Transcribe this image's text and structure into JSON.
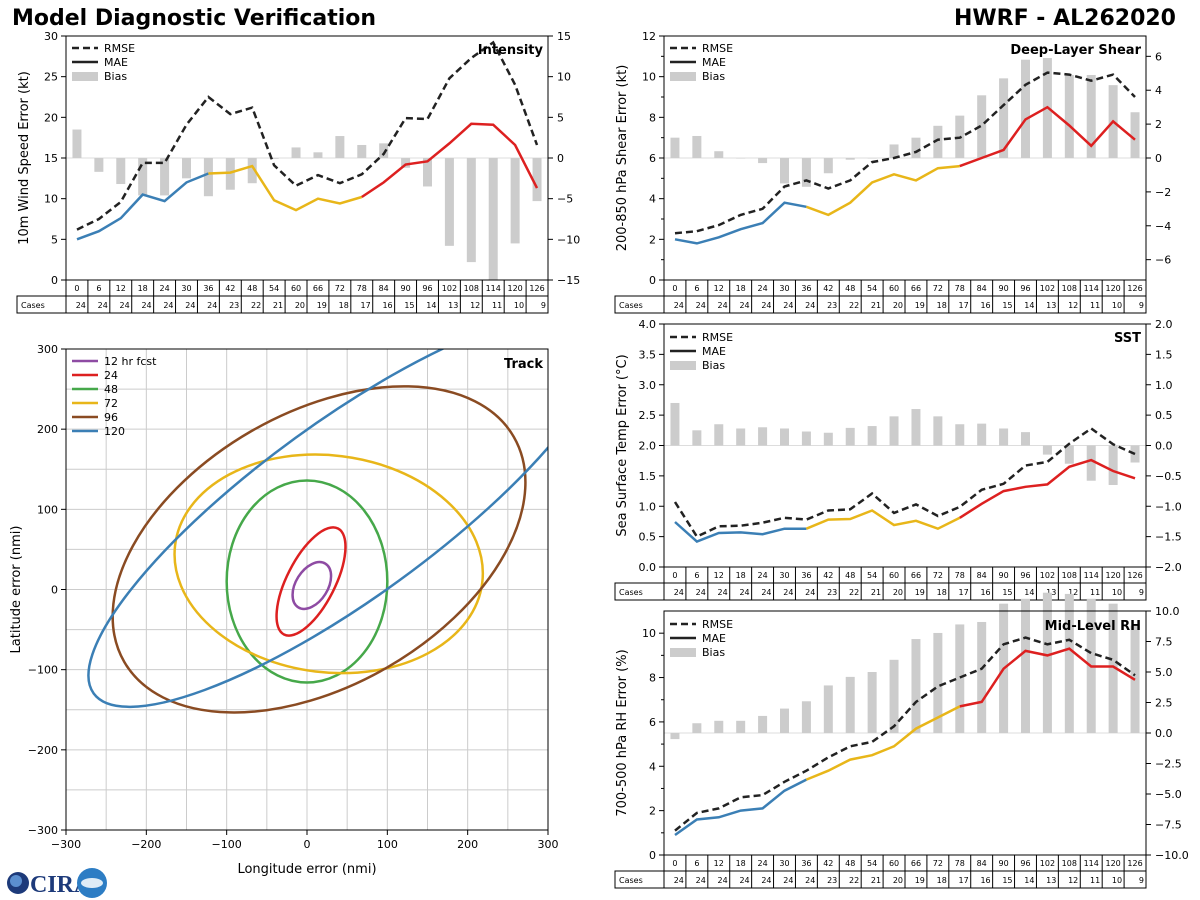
{
  "header": {
    "title": "Model Diagnostic Verification",
    "storm": "HWRF - AL262020"
  },
  "logo": {
    "text": "CIRA",
    "name": "cira-logo"
  },
  "colors": {
    "rmse": "#222222",
    "bias": "#cccccc",
    "seg1": "#3b7fb5",
    "seg2": "#e8b619",
    "seg3": "#dd2020",
    "e12": "#8e4ba3",
    "e24": "#dd2020",
    "e48": "#46a84a",
    "e72": "#e8b619",
    "e96": "#8a4b22",
    "e120": "#3b7fb5"
  },
  "legend": {
    "rmse": "RMSE",
    "mae": "MAE",
    "bias": "Bias"
  },
  "cases_label": "Cases",
  "chart_data": [
    {
      "id": "intensity",
      "type": "line",
      "title": "Intensity",
      "ylabel": "10m Wind Speed Error (kt)",
      "ylim": [
        0,
        30
      ],
      "yticks": [
        0,
        5,
        10,
        15,
        20,
        25,
        30
      ],
      "y2lim": [
        -15,
        15
      ],
      "y2ticks": [
        -15,
        -10,
        -5,
        0,
        5,
        10,
        15
      ],
      "x": [
        0,
        6,
        12,
        18,
        24,
        30,
        36,
        42,
        48,
        54,
        60,
        66,
        72,
        78,
        84,
        90,
        96,
        102,
        108,
        114,
        120,
        126
      ],
      "x_labels": [
        "0",
        "6",
        "12",
        "18",
        "24",
        "30",
        "36",
        "42",
        "48",
        "54",
        "60",
        "66",
        "72",
        "78",
        "84",
        "90",
        "96",
        "102",
        "108",
        "114",
        "120",
        "126"
      ],
      "cases": [
        24,
        24,
        24,
        24,
        24,
        24,
        24,
        23,
        22,
        21,
        20,
        19,
        18,
        17,
        16,
        15,
        14,
        13,
        12,
        11,
        10,
        9
      ],
      "rmse": [
        6.2,
        7.5,
        9.6,
        14.4,
        14.4,
        19.1,
        22.5,
        20.4,
        21.2,
        14.1,
        11.6,
        12.9,
        11.9,
        13.0,
        15.5,
        19.9,
        19.8,
        24.8,
        27.3,
        29.2,
        24.0,
        16.6
      ],
      "mae": [
        5.0,
        6.0,
        7.6,
        10.5,
        9.7,
        12.0,
        13.1,
        13.2,
        14.0,
        9.8,
        8.6,
        10.0,
        9.4,
        10.2,
        12.0,
        14.2,
        14.6,
        16.8,
        19.2,
        19.1,
        16.6,
        11.3
      ],
      "bias": [
        3.5,
        -1.7,
        -3.2,
        -4.6,
        -4.6,
        -2.5,
        -4.7,
        -3.9,
        -3.1,
        -0.1,
        1.3,
        0.7,
        2.7,
        1.6,
        1.8,
        -1.2,
        -3.5,
        -10.8,
        -12.8,
        -15.0,
        -10.5,
        -5.3
      ]
    },
    {
      "id": "shear",
      "type": "line",
      "title": "Deep-Layer Shear",
      "ylabel": "200-850 hPa Shear Error (kt)",
      "ylim": [
        0,
        12
      ],
      "yticks": [
        0,
        2,
        4,
        6,
        8,
        10,
        12
      ],
      "y2lim": [
        -7.2,
        7.2
      ],
      "y2ticks": [
        -6,
        -4,
        -2,
        0,
        2,
        4,
        6
      ],
      "x": [
        0,
        6,
        12,
        18,
        24,
        30,
        36,
        42,
        48,
        54,
        60,
        66,
        72,
        78,
        84,
        90,
        96,
        102,
        108,
        114,
        120,
        126
      ],
      "x_labels": [
        "0",
        "6",
        "12",
        "18",
        "24",
        "30",
        "36",
        "42",
        "48",
        "54",
        "60",
        "66",
        "72",
        "78",
        "84",
        "90",
        "96",
        "102",
        "108",
        "114",
        "120",
        "126"
      ],
      "cases": [
        24,
        24,
        24,
        24,
        24,
        24,
        24,
        23,
        22,
        21,
        20,
        19,
        18,
        17,
        16,
        15,
        14,
        13,
        12,
        11,
        10,
        9
      ],
      "rmse": [
        2.3,
        2.4,
        2.7,
        3.2,
        3.5,
        4.6,
        4.9,
        4.5,
        4.9,
        5.8,
        6.0,
        6.3,
        6.9,
        7.0,
        7.6,
        8.6,
        9.6,
        10.2,
        10.1,
        9.8,
        10.1,
        9.0
      ],
      "mae": [
        2.0,
        1.8,
        2.1,
        2.5,
        2.8,
        3.8,
        3.6,
        3.2,
        3.8,
        4.8,
        5.2,
        4.9,
        5.5,
        5.6,
        6.0,
        6.4,
        7.9,
        8.5,
        7.6,
        6.6,
        7.8,
        6.9
      ],
      "bias": [
        1.2,
        1.3,
        0.4,
        0.0,
        -0.3,
        -1.5,
        -1.7,
        -0.9,
        -0.1,
        0.0,
        0.8,
        1.2,
        1.9,
        2.5,
        3.7,
        4.7,
        5.8,
        5.9,
        4.9,
        4.9,
        4.3,
        2.7
      ]
    },
    {
      "id": "sst",
      "type": "line",
      "title": "SST",
      "ylabel": "Sea Surface Temp Error (°C)",
      "ylim": [
        0,
        4
      ],
      "yticks": [
        0.0,
        0.5,
        1.0,
        1.5,
        2.0,
        2.5,
        3.0,
        3.5,
        4.0
      ],
      "y2lim": [
        -2,
        2
      ],
      "y2ticks": [
        -2.0,
        -1.5,
        -1.0,
        -0.5,
        0.0,
        0.5,
        1.0,
        1.5,
        2.0
      ],
      "x": [
        0,
        6,
        12,
        18,
        24,
        30,
        36,
        42,
        48,
        54,
        60,
        66,
        72,
        78,
        84,
        90,
        96,
        102,
        108,
        114,
        120,
        126
      ],
      "x_labels": [
        "0",
        "6",
        "12",
        "18",
        "24",
        "30",
        "36",
        "42",
        "48",
        "54",
        "60",
        "66",
        "72",
        "78",
        "84",
        "90",
        "96",
        "102",
        "108",
        "114",
        "120",
        "126"
      ],
      "cases": [
        24,
        24,
        24,
        24,
        24,
        24,
        24,
        23,
        22,
        21,
        20,
        19,
        18,
        17,
        16,
        15,
        14,
        13,
        12,
        11,
        10,
        9
      ],
      "rmse": [
        1.07,
        0.5,
        0.67,
        0.68,
        0.73,
        0.81,
        0.78,
        0.93,
        0.95,
        1.21,
        0.89,
        1.03,
        0.84,
        0.99,
        1.27,
        1.37,
        1.67,
        1.73,
        2.03,
        2.28,
        2.02,
        1.86
      ],
      "mae": [
        0.74,
        0.42,
        0.56,
        0.57,
        0.54,
        0.63,
        0.63,
        0.78,
        0.79,
        0.93,
        0.69,
        0.76,
        0.63,
        0.81,
        1.04,
        1.25,
        1.32,
        1.36,
        1.65,
        1.76,
        1.58,
        1.46
      ],
      "bias": [
        0.7,
        0.25,
        0.35,
        0.28,
        0.3,
        0.28,
        0.23,
        0.21,
        0.29,
        0.32,
        0.48,
        0.6,
        0.48,
        0.35,
        0.36,
        0.28,
        0.22,
        -0.15,
        -0.3,
        -0.58,
        -0.65,
        -0.28
      ]
    },
    {
      "id": "rh",
      "type": "line",
      "title": "Mid-Level RH",
      "ylabel": "700-500 hPa RH Error (%)",
      "ylim": [
        0,
        11
      ],
      "yticks": [
        0,
        2,
        4,
        6,
        8,
        10
      ],
      "y2lim": [
        -10,
        10
      ],
      "y2ticks": [
        -10.0,
        -7.5,
        -5.0,
        -2.5,
        0.0,
        2.5,
        5.0,
        7.5,
        10.0
      ],
      "x": [
        0,
        6,
        12,
        18,
        24,
        30,
        36,
        42,
        48,
        54,
        60,
        66,
        72,
        78,
        84,
        90,
        96,
        102,
        108,
        114,
        120,
        126
      ],
      "x_labels": [
        "0",
        "6",
        "12",
        "18",
        "24",
        "30",
        "36",
        "42",
        "48",
        "54",
        "60",
        "66",
        "72",
        "78",
        "84",
        "90",
        "96",
        "102",
        "108",
        "114",
        "120",
        "126"
      ],
      "cases": [
        24,
        24,
        24,
        24,
        24,
        24,
        24,
        23,
        22,
        21,
        20,
        19,
        18,
        17,
        16,
        15,
        14,
        13,
        12,
        11,
        10,
        9
      ],
      "rmse": [
        1.1,
        1.9,
        2.1,
        2.6,
        2.7,
        3.3,
        3.8,
        4.4,
        4.9,
        5.1,
        5.8,
        6.9,
        7.6,
        8.0,
        8.4,
        9.5,
        9.8,
        9.5,
        9.7,
        9.1,
        8.8,
        8.1
      ],
      "mae": [
        0.9,
        1.6,
        1.7,
        2.0,
        2.1,
        2.9,
        3.4,
        3.8,
        4.3,
        4.5,
        4.9,
        5.7,
        6.2,
        6.7,
        6.9,
        8.4,
        9.2,
        9.0,
        9.3,
        8.5,
        8.5,
        7.9
      ],
      "bias": [
        -0.5,
        0.8,
        1.0,
        1.0,
        1.4,
        2.0,
        2.6,
        3.9,
        4.6,
        5.0,
        6.0,
        7.7,
        8.2,
        8.9,
        9.1,
        10.6,
        11.0,
        11.5,
        11.4,
        11.0,
        10.6,
        8.8
      ]
    },
    {
      "id": "track",
      "type": "scatter",
      "title": "Track",
      "xlabel": "Longitude error (nmi)",
      "ylabel": "Latitude error (nmi)",
      "xlim": [
        -300,
        300
      ],
      "ylim": [
        -300,
        300
      ],
      "xticks": [
        -300,
        -200,
        -100,
        0,
        100,
        200,
        300
      ],
      "yticks": [
        -300,
        -200,
        -100,
        0,
        100,
        200,
        300
      ],
      "ellipses": [
        {
          "label": "12 hr fcst",
          "color": "#8e4ba3",
          "cx": 6,
          "cy": 5,
          "a": 32,
          "b": 20,
          "angle": 58
        },
        {
          "label": "24",
          "color": "#dd2020",
          "cx": 5,
          "cy": 10,
          "a": 74,
          "b": 30,
          "angle": 63
        },
        {
          "label": "48",
          "color": "#46a84a",
          "cx": 0,
          "cy": 10,
          "a": 100,
          "b": 126,
          "angle": 0
        },
        {
          "label": "72",
          "color": "#e8b619",
          "cx": 27,
          "cy": 32,
          "a": 135,
          "b": 193,
          "angle": 83
        },
        {
          "label": "96",
          "color": "#8a4b22",
          "cx": 15,
          "cy": 50,
          "a": 280,
          "b": 170,
          "angle": 30
        },
        {
          "label": "120",
          "color": "#3b7fb5",
          "cx": 50,
          "cy": 100,
          "a": 390,
          "b": 110,
          "angle": 36
        }
      ]
    }
  ]
}
